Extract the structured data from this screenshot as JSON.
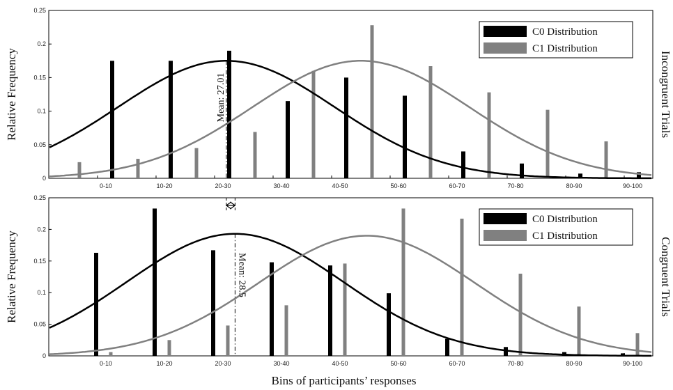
{
  "chart_data": [
    {
      "type": "bar",
      "side_label": "Incongruent  Trials",
      "ylabel": "Relative Frequency",
      "xlabel": "",
      "ylim": [
        0,
        0.25
      ],
      "yticks": [
        "0",
        "0.05",
        "0.1",
        "0.15",
        "0.2",
        "0.25"
      ],
      "categories": [
        "0-10",
        "10-20",
        "20-30",
        "30-40",
        "40-50",
        "50-60",
        "60-70",
        "70-80",
        "80-90",
        "90-100"
      ],
      "legend_position": "top-right",
      "series": [
        {
          "name": "C0 Distribution",
          "color": "#000000",
          "values": [
            0.175,
            0.175,
            0.19,
            0.115,
            0.15,
            0.123,
            0.04,
            0.022,
            0.007,
            0.009
          ]
        },
        {
          "name": "C1 Distribution",
          "color": "#808080",
          "values": [
            0.024,
            0.029,
            0.045,
            0.069,
            0.16,
            0.228,
            0.167,
            0.128,
            0.102,
            0.055
          ]
        }
      ],
      "fit_curves": [
        {
          "series": "C0 Distribution",
          "peak": 0.175,
          "mean": 27.01
        },
        {
          "series": "C1 Distribution",
          "peak": 0.175,
          "mean": 50
        }
      ],
      "mean_annotation": "Mean: 27.01"
    },
    {
      "type": "bar",
      "side_label": "Congruent  Trials",
      "ylabel": "Relative Frequency",
      "xlabel": "Bins of participants’ responses",
      "ylim": [
        0,
        0.25
      ],
      "yticks": [
        "0",
        "0.05",
        "0.1",
        "0.15",
        "0.2",
        "0.25"
      ],
      "categories": [
        "0-10",
        "10-20",
        "20-30",
        "30-40",
        "40-50",
        "50-60",
        "60-70",
        "70-80",
        "80-90",
        "90-100"
      ],
      "legend_position": "top-right",
      "series": [
        {
          "name": "C0 Distribution",
          "color": "#000000",
          "values": [
            0.163,
            0.233,
            0.167,
            0.148,
            0.143,
            0.099,
            0.027,
            0.014,
            0.006,
            0.004
          ]
        },
        {
          "name": "C1 Distribution",
          "color": "#808080",
          "values": [
            0.006,
            0.025,
            0.048,
            0.08,
            0.146,
            0.233,
            0.217,
            0.13,
            0.078,
            0.036
          ]
        }
      ],
      "fit_curves": [
        {
          "series": "C0 Distribution",
          "peak": 0.193,
          "mean": 28.5
        },
        {
          "series": "C1 Distribution",
          "peak": 0.19,
          "mean": 51
        }
      ],
      "mean_annotation": "Mean: 28.5"
    }
  ]
}
